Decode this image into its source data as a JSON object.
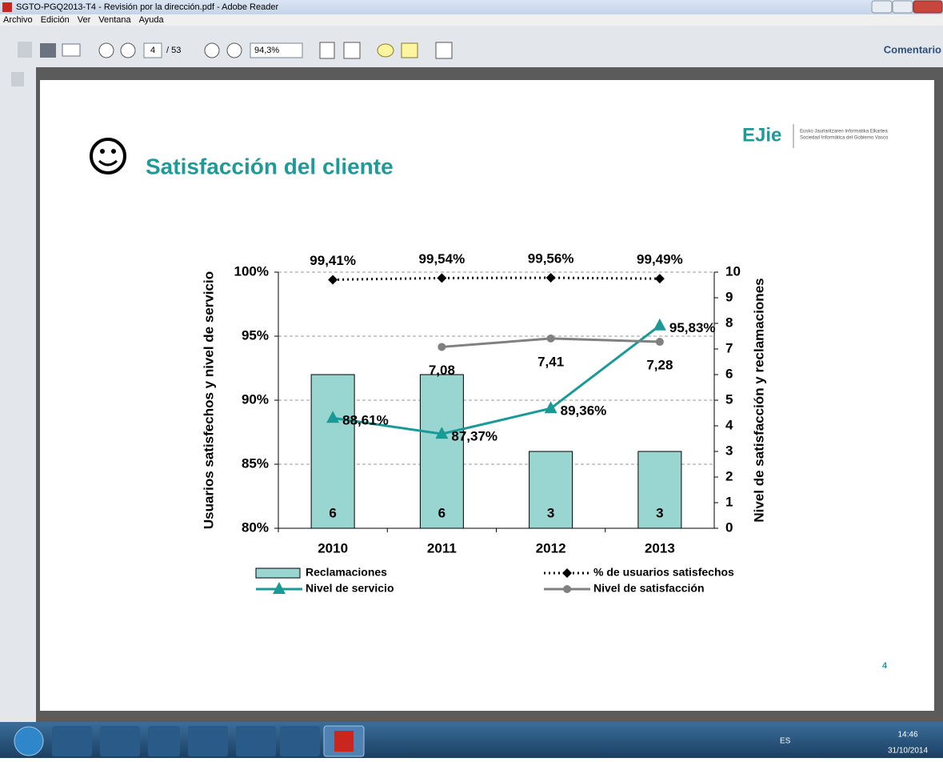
{
  "window": {
    "title": "SGTO-PGQ2013-T4 - Revisión por la dirección.pdf - Adobe Reader"
  },
  "menu": [
    "Archivo",
    "Edición",
    "Ver",
    "Ventana",
    "Ayuda"
  ],
  "toolbar": {
    "page": "4",
    "pages": "/ 53",
    "zoom": "94,3%",
    "comment": "Comentario"
  },
  "slide": {
    "title": "Satisfacción del cliente",
    "logo": "EJie",
    "logo_text": [
      "Eusko Jaurlaritzaren Informatika Elkartea",
      "Sociedad Informática del Gobierno Vasco"
    ],
    "page_number": "4"
  },
  "chart_data": {
    "type": "combo",
    "categories": [
      "2010",
      "2011",
      "2012",
      "2013"
    ],
    "y_label": "Usuarios satisfechos y nivel de servicio",
    "y2_label": "Nivel de satisfacción y reclamaciones",
    "ylim": [
      80,
      100
    ],
    "yticks": [
      {
        "value": 80,
        "label": "80%"
      },
      {
        "value": 85,
        "label": "85%"
      },
      {
        "value": 90,
        "label": "90%"
      },
      {
        "value": 95,
        "label": "95%"
      },
      {
        "value": 100,
        "label": "100%"
      }
    ],
    "y2lim": [
      0,
      10
    ],
    "y2ticks": [
      0,
      1,
      2,
      3,
      4,
      5,
      6,
      7,
      8,
      9,
      10
    ],
    "grid": true,
    "series": [
      {
        "name": "Reclamaciones",
        "type": "bar",
        "axis": "y2",
        "color": "#99d5d1",
        "values": [
          6,
          6,
          3,
          3
        ]
      },
      {
        "name": "% de usuarios satisfechos",
        "type": "line",
        "style": "dotted",
        "marker": "diamond",
        "axis": "y",
        "color": "#000000",
        "values": [
          99.41,
          99.54,
          99.56,
          99.49
        ],
        "value_labels": [
          "99,41%",
          "99,54%",
          "99,56%",
          "99,49%"
        ]
      },
      {
        "name": "Nivel de servicio",
        "type": "line",
        "style": "solid",
        "marker": "triangle",
        "axis": "y",
        "color": "#1a9a97",
        "values": [
          88.61,
          87.37,
          89.36,
          95.83
        ],
        "value_labels": [
          "88,61%",
          "87,37%",
          "89,36%",
          "95,83%"
        ]
      },
      {
        "name": "Nivel de satisfacción",
        "type": "line",
        "style": "solid",
        "marker": "circle",
        "axis": "y2",
        "color": "#808080",
        "values": [
          null,
          7.08,
          7.41,
          7.28
        ],
        "value_labels": [
          null,
          "7,08",
          "7,41",
          "7,28"
        ]
      }
    ]
  },
  "taskbar": {
    "lang": "ES",
    "time": "14:46",
    "date": "31/10/2014"
  }
}
